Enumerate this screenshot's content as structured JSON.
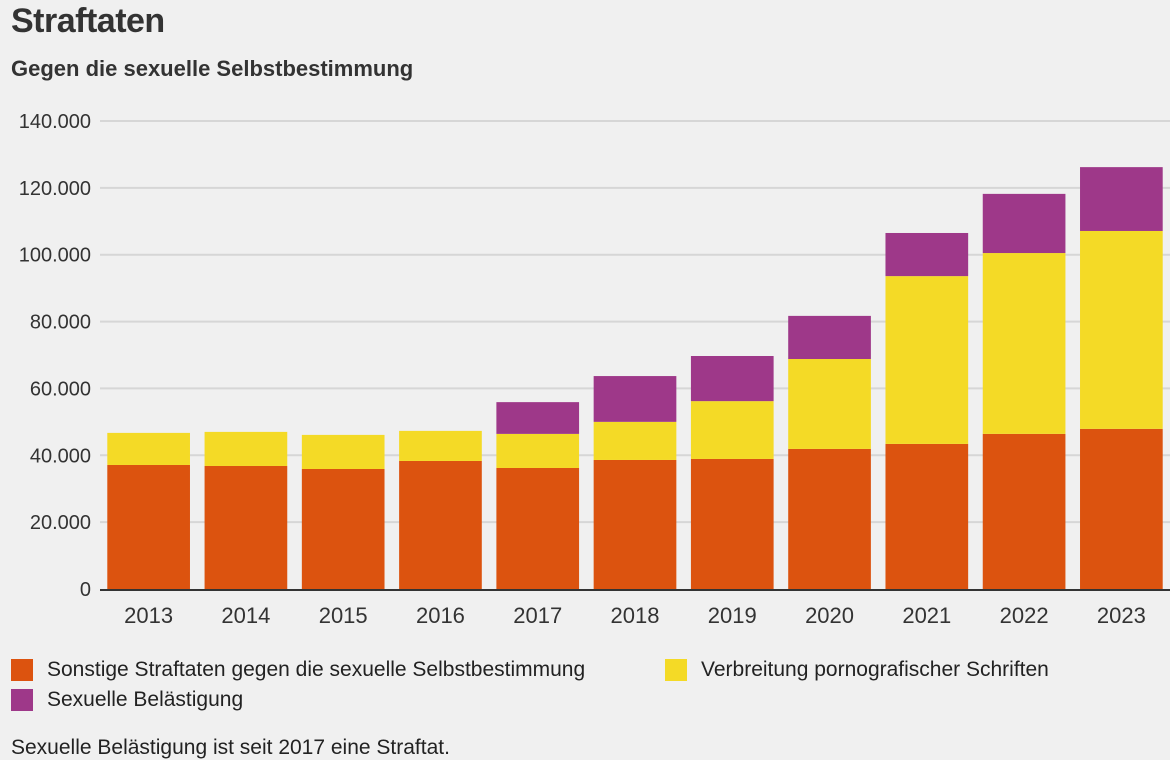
{
  "chart_data": {
    "type": "bar",
    "stacked": true,
    "title": "Straftaten",
    "subtitle": "Gegen die sexuelle Selbstbestimmung",
    "xlabel": "",
    "ylabel": "",
    "ylim": [
      0,
      140000
    ],
    "yticks": [
      0,
      20000,
      40000,
      60000,
      80000,
      100000,
      120000,
      140000
    ],
    "ytick_labels": [
      "0",
      "20.000",
      "40.000",
      "60.000",
      "80.000",
      "100.000",
      "120.000",
      "140.000"
    ],
    "grid": true,
    "legend_position": "bottom",
    "categories": [
      "2013",
      "2014",
      "2015",
      "2016",
      "2017",
      "2018",
      "2019",
      "2020",
      "2021",
      "2022",
      "2023"
    ],
    "series": [
      {
        "name": "Sonstige Straftaten gegen die sexuelle Selbstbestimmung",
        "color": "#dc530f",
        "values": [
          37100,
          36800,
          35900,
          38300,
          36200,
          38600,
          38900,
          41900,
          43400,
          46400,
          47900
        ]
      },
      {
        "name": "Verbreitung pornografischer Schriften",
        "color": "#f4da26",
        "values": [
          9600,
          10200,
          10200,
          9000,
          10200,
          11400,
          17300,
          26900,
          50200,
          54100,
          59200
        ]
      },
      {
        "name": "Sexuelle Belästigung",
        "color": "#9e3889",
        "values": [
          0,
          0,
          0,
          0,
          9500,
          13700,
          13500,
          12900,
          12900,
          17700,
          19100
        ]
      }
    ],
    "annotation": "Sexuelle Belästigung ist seit 2017 eine Straftat."
  },
  "legend": [
    {
      "label": "Sonstige Straftaten gegen die sexuelle Selbstbestimmung",
      "color": "#dc530f"
    },
    {
      "label": "Verbreitung pornografischer Schriften",
      "color": "#f4da26"
    },
    {
      "label": "Sexuelle Belästigung",
      "color": "#9e3889"
    }
  ],
  "colors": {
    "background": "#f0f0f0",
    "grid": "#d6d6d6",
    "axis": "#333333",
    "text": "#333333"
  }
}
